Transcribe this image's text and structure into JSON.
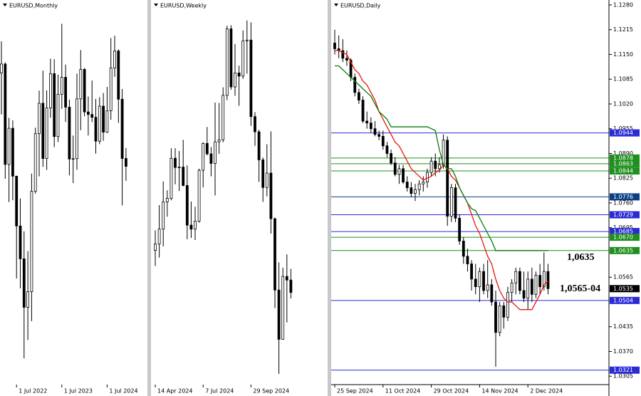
{
  "chart_data": [
    {
      "type": "candlestick",
      "title": "EURUSD,Monthly",
      "categories": [
        null,
        null,
        null,
        null,
        "1 Jul 2022",
        null,
        null,
        null,
        null,
        null,
        null,
        null,
        null,
        null,
        null,
        null,
        "1 Jul 2023",
        null,
        null,
        null,
        null,
        null,
        null,
        null,
        null,
        null,
        null,
        null,
        "1 Jul 2024",
        null,
        null,
        null,
        null,
        null
      ],
      "open": [
        1.102,
        1.1067,
        1.0545,
        1.0733,
        1.0484,
        1.0225,
        1.0054,
        0.9802,
        0.9883,
        1.0405,
        1.0705,
        1.0863,
        1.0576,
        1.0839,
        1.1017,
        1.069,
        1.091,
        1.0998,
        1.0843,
        1.0573,
        1.0575,
        1.0886,
        1.1039,
        1.0818,
        1.0805,
        1.079,
        1.0666,
        1.0848,
        1.0713,
        1.0824,
        1.1047,
        1.1135,
        1.0884,
        1.0576
      ],
      "high": [
        1.1185,
        1.1076,
        1.0787,
        1.0774,
        1.0486,
        1.0368,
        1.0197,
        1.0094,
        1.0497,
        1.0736,
        1.0929,
        1.1033,
        1.093,
        1.1095,
        1.1092,
        1.1012,
        1.1276,
        1.1064,
        1.0882,
        1.0695,
        1.1017,
        1.114,
        1.1046,
        1.0898,
        1.0981,
        1.0885,
        1.0895,
        1.0916,
        1.0948,
        1.1202,
        1.1214,
        1.1144,
        1.0937,
        1.063
      ],
      "low": [
        1.0805,
        1.0471,
        1.0349,
        1.0359,
        0.9952,
        0.9901,
        0.9536,
        0.9632,
        0.973,
        1.0393,
        1.0483,
        1.0533,
        1.0516,
        1.0788,
        1.0635,
        1.0662,
        1.0834,
        1.0766,
        1.0488,
        1.0448,
        1.0517,
        1.0723,
        1.0795,
        1.0695,
        1.0765,
        1.0601,
        1.065,
        1.0668,
        1.0709,
        1.0777,
        1.1001,
        1.0761,
        1.0332,
        1.046
      ],
      "close": [
        1.1067,
        1.0545,
        1.0733,
        1.0484,
        1.0225,
        1.0054,
        0.9802,
        0.9883,
        1.0405,
        1.0705,
        1.0863,
        1.0576,
        1.0839,
        1.1017,
        1.069,
        1.091,
        1.0998,
        1.0843,
        1.0573,
        1.0575,
        1.0886,
        1.1039,
        1.0818,
        1.0805,
        1.079,
        1.0666,
        1.0848,
        1.0713,
        1.0824,
        1.1047,
        1.1135,
        1.0884,
        1.0576,
        1.0535
      ],
      "ylim": [
        0.94,
        1.14
      ]
    },
    {
      "type": "candlestick",
      "title": "EURUSD,Weekly",
      "categories": [
        "14 Apr 2024",
        null,
        null,
        null,
        null,
        null,
        null,
        null,
        null,
        null,
        null,
        null,
        "7 Jul 2024",
        null,
        null,
        null,
        null,
        null,
        null,
        null,
        null,
        null,
        null,
        null,
        "29 Sep 2024",
        null,
        null,
        null,
        null,
        null,
        null,
        null,
        null,
        null,
        null
      ],
      "open": [
        1.064,
        1.0656,
        1.0693,
        1.0761,
        1.077,
        1.087,
        1.0847,
        1.0848,
        1.0802,
        1.0703,
        1.0693,
        1.0713,
        1.084,
        1.0907,
        1.0881,
        1.0857,
        1.0911,
        1.0916,
        1.1027,
        1.1193,
        1.1048,
        1.1083,
        1.1075,
        1.1163,
        1.1165,
        1.0974,
        1.0936,
        1.0866,
        1.0797,
        1.0833,
        1.0719,
        1.0541,
        1.0418,
        1.0575,
        1.0566
      ],
      "high": [
        1.069,
        1.0753,
        1.0812,
        1.079,
        1.0895,
        1.0895,
        1.0888,
        1.0916,
        1.0852,
        1.0762,
        1.0749,
        1.0844,
        1.091,
        1.0948,
        1.0898,
        1.1009,
        1.1008,
        1.1047,
        1.1201,
        1.1202,
        1.1155,
        1.1101,
        1.1189,
        1.1214,
        1.1209,
        1.0985,
        1.0941,
        1.0872,
        1.0905,
        1.0937,
        1.0722,
        1.061,
        1.0597,
        1.063,
        1.0594
      ],
      "low": [
        1.0601,
        1.0622,
        1.065,
        1.0724,
        1.0765,
        1.0805,
        1.0788,
        1.08,
        1.0668,
        1.0671,
        1.0666,
        1.0709,
        1.0797,
        1.0877,
        1.0825,
        1.0777,
        1.0881,
        1.091,
        1.1015,
        1.1041,
        1.1026,
        1.1001,
        1.1068,
        1.1081,
        1.0951,
        1.0901,
        1.0811,
        1.0761,
        1.0775,
        1.0682,
        1.0496,
        1.0332,
        1.0422,
        1.046,
        1.052
      ],
      "close": [
        1.0656,
        1.0693,
        1.0761,
        1.077,
        1.087,
        1.0847,
        1.0848,
        1.0802,
        1.0703,
        1.0693,
        1.0713,
        1.084,
        1.0907,
        1.0881,
        1.0857,
        1.0911,
        1.0916,
        1.1027,
        1.1193,
        1.1048,
        1.1083,
        1.1075,
        1.1163,
        1.1165,
        1.0974,
        1.0936,
        1.0866,
        1.0797,
        1.0833,
        1.0719,
        1.0541,
        1.0418,
        1.0575,
        1.0566,
        1.0535
      ],
      "ylim": [
        1.0305,
        1.1265
      ]
    },
    {
      "type": "candlestick",
      "title": "EURUSD,Daily",
      "categories": [
        "25 Sep 2024",
        null,
        null,
        null,
        null,
        null,
        null,
        null,
        null,
        null,
        null,
        null,
        "11 Oct 2024",
        null,
        null,
        null,
        null,
        null,
        null,
        null,
        null,
        null,
        null,
        null,
        "29 Oct 2024",
        null,
        null,
        null,
        null,
        null,
        null,
        null,
        null,
        null,
        null,
        null,
        "14 Nov 2024",
        null,
        null,
        null,
        null,
        null,
        null,
        null,
        null,
        null,
        null,
        null,
        "2 Dec 2024",
        null,
        null,
        null,
        null,
        null
      ],
      "open": [
        1.118,
        1.1165,
        1.116,
        1.114,
        1.1135,
        1.109,
        1.105,
        1.103,
        1.0975,
        1.097,
        1.0955,
        1.094,
        1.0935,
        1.091,
        1.089,
        1.0865,
        1.0835,
        1.085,
        1.0815,
        1.08,
        1.0785,
        1.0795,
        1.081,
        1.0815,
        1.084,
        1.087,
        1.085,
        1.086,
        1.0925,
        1.0725,
        1.08,
        1.072,
        1.066,
        1.062,
        1.06,
        1.056,
        1.054,
        1.058,
        1.053,
        1.0545,
        1.05,
        1.042,
        1.049,
        1.046,
        1.0525,
        1.055,
        1.058,
        1.053,
        1.051,
        1.056,
        1.052,
        1.057,
        1.054,
        1.058
      ],
      "high": [
        1.1215,
        1.12,
        1.119,
        1.116,
        1.114,
        1.11,
        1.106,
        1.104,
        1.1,
        1.0985,
        1.0975,
        1.095,
        1.095,
        1.092,
        1.09,
        1.088,
        1.086,
        1.086,
        1.083,
        1.0815,
        1.081,
        1.082,
        1.083,
        1.085,
        1.088,
        1.089,
        1.088,
        1.094,
        1.0935,
        1.081,
        1.081,
        1.073,
        1.067,
        1.064,
        1.061,
        1.06,
        1.059,
        1.06,
        1.061,
        1.056,
        1.053,
        1.05,
        1.05,
        1.054,
        1.056,
        1.059,
        1.059,
        1.058,
        1.058,
        1.059,
        1.058,
        1.06,
        1.063,
        1.06
      ],
      "low": [
        1.115,
        1.114,
        1.113,
        1.112,
        1.108,
        1.104,
        1.102,
        1.097,
        1.0955,
        1.0945,
        1.0935,
        1.0925,
        1.09,
        1.088,
        1.086,
        1.083,
        1.081,
        1.081,
        1.079,
        1.0775,
        1.0765,
        1.078,
        1.079,
        1.08,
        1.083,
        1.083,
        1.084,
        1.085,
        1.07,
        1.071,
        1.071,
        1.065,
        1.06,
        1.058,
        1.053,
        1.052,
        1.05,
        1.052,
        1.051,
        1.049,
        1.033,
        1.041,
        1.043,
        1.045,
        1.05,
        1.052,
        1.052,
        1.05,
        1.048,
        1.05,
        1.051,
        1.052,
        1.053,
        1.052
      ],
      "close": [
        1.1165,
        1.116,
        1.114,
        1.1135,
        1.109,
        1.105,
        1.103,
        1.0975,
        1.097,
        1.0955,
        1.094,
        1.0935,
        1.091,
        1.089,
        1.0865,
        1.0835,
        1.085,
        1.0815,
        1.08,
        1.0785,
        1.0795,
        1.081,
        1.0815,
        1.084,
        1.087,
        1.085,
        1.086,
        1.0925,
        1.0725,
        1.08,
        1.072,
        1.066,
        1.062,
        1.06,
        1.056,
        1.054,
        1.058,
        1.053,
        1.0545,
        1.05,
        1.042,
        1.049,
        1.046,
        1.0525,
        1.055,
        1.058,
        1.053,
        1.051,
        1.056,
        1.052,
        1.057,
        1.054,
        1.058,
        1.0535
      ],
      "lines": [
        {
          "color": "#e8160c",
          "values": [
            1.116,
            1.116,
            1.1155,
            1.115,
            1.113,
            1.111,
            1.11,
            1.108,
            1.107,
            1.105,
            1.103,
            1.1,
            1.098,
            1.096,
            1.094,
            1.092,
            1.091,
            1.089,
            1.087,
            1.085,
            1.084,
            1.083,
            1.082,
            1.0825,
            1.083,
            1.084,
            1.0845,
            1.086,
            1.085,
            1.083,
            1.082,
            1.08,
            1.078,
            1.076,
            1.073,
            1.07,
            1.068,
            1.065,
            1.062,
            1.06,
            1.056,
            1.053,
            1.051,
            1.05,
            1.05,
            1.049,
            1.048,
            1.048,
            1.048,
            1.048,
            1.05,
            1.052,
            1.0545,
            1.0555
          ]
        },
        {
          "color": "#0b7a0b",
          "values": [
            1.112,
            1.112,
            1.111,
            1.11,
            1.109,
            1.108,
            1.107,
            1.106,
            1.105,
            1.104,
            1.102,
            1.1,
            1.099,
            1.098,
            1.096,
            1.096,
            1.096,
            1.096,
            1.096,
            1.096,
            1.096,
            1.096,
            1.096,
            1.096,
            1.0955,
            1.095,
            1.09,
            1.086,
            1.085,
            1.085,
            1.083,
            1.08,
            1.078,
            1.076,
            1.0745,
            1.074,
            1.072,
            1.07,
            1.068,
            1.066,
            1.0635,
            1.0635,
            1.0635,
            1.0635,
            1.0635,
            1.0635,
            1.0635,
            1.0635,
            1.0635,
            1.0635,
            1.0635,
            1.0635,
            1.0635,
            1.0635
          ]
        }
      ],
      "ylim": [
        1.0283,
        1.1293
      ],
      "yticks": [
        {
          "value": 1.128,
          "label": "1.1280"
        },
        1.1215,
        {
          "value": 1.115,
          "label": "1.1150"
        },
        1.1085,
        {
          "value": 1.102,
          "label": "1.1020"
        },
        1.0955,
        {
          "value": 1.089,
          "label": "1.0890"
        },
        1.0825,
        {
          "value": 1.076,
          "label": "1.0760"
        },
        1.0695,
        1.0565,
        1.0435,
        {
          "value": 1.037,
          "label": "1.0370"
        },
        1.0305
      ],
      "levels": [
        {
          "value": 1.0944,
          "color": "#2b2bd6"
        },
        {
          "value": 1.0878,
          "color": "#1f8f1f"
        },
        {
          "value": 1.0863,
          "color": "#1f8f1f"
        },
        {
          "value": 1.0844,
          "color": "#1f8f1f"
        },
        {
          "value": 1.0776,
          "color": "#0b3f86"
        },
        {
          "value": 1.0729,
          "color": "#2b2bd6"
        },
        {
          "value": 1.0685,
          "color": "#2b2bd6"
        },
        {
          "value": 1.067,
          "label": "1.0670",
          "color": "#1f8f1f"
        },
        {
          "value": 1.0635,
          "color": "#1f8f1f"
        },
        {
          "value": 1.0504,
          "color": "#2b2bd6"
        },
        {
          "value": 1.0321,
          "color": "#2b2bd6"
        }
      ],
      "last_price": 1.0535,
      "annotations": [
        "1,0635",
        "1,0565-04"
      ]
    }
  ]
}
